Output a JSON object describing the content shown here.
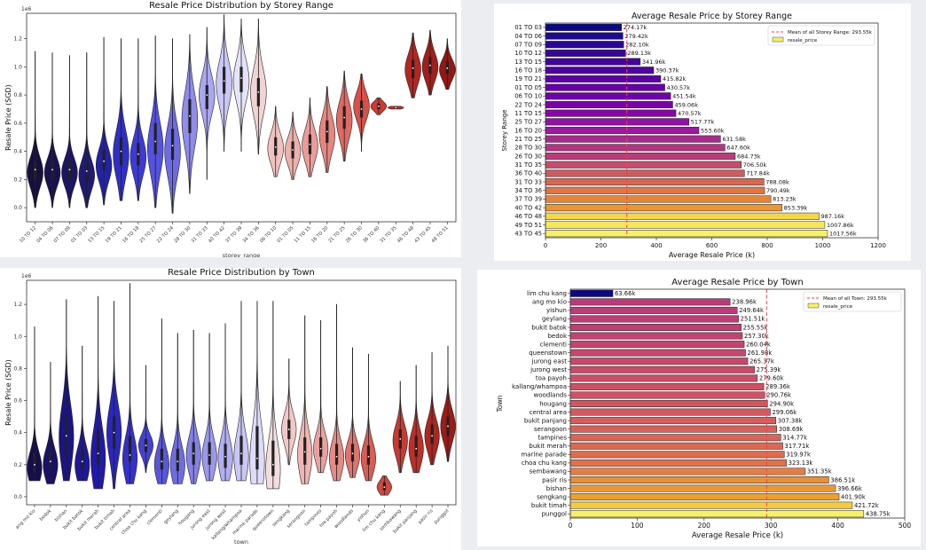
{
  "colors": {
    "ref_line": "#e8474f",
    "legend_patch": "#f4f06e",
    "box": "#222222"
  },
  "chart_data": [
    {
      "id": "violin_storey",
      "type": "violin",
      "title": "Resale Price Distribution by Storey Range",
      "xlabel": "storey_range",
      "ylabel": "Resale Price (SGD)",
      "y_scale_label": "1e6",
      "ylim": [
        -0.1,
        1.38
      ],
      "yticks": [
        0.0,
        0.2,
        0.4,
        0.6,
        0.8,
        1.0,
        1.2
      ],
      "ytick_labels": [
        "0.0",
        "0.2",
        "0.4",
        "0.6",
        "0.8",
        "1.0",
        "1.2"
      ],
      "categories": [
        "10 TO 12",
        "04 TO 06",
        "07 TO 09",
        "01 TO 03",
        "13 TO 15",
        "19 TO 21",
        "16 TO 18",
        "25 TO 27",
        "22 TO 24",
        "28 TO 30",
        "31 TO 33",
        "40 TO 42",
        "37 TO 39",
        "34 TO 36",
        "06 TO 10",
        "01 TO 05",
        "11 TO 15",
        "16 TO 20",
        "21 TO 25",
        "26 TO 30",
        "36 TO 40",
        "31 TO 35",
        "46 TO 48",
        "43 TO 45",
        "49 TO 51"
      ],
      "distributions": [
        {
          "min": 0.0,
          "q1": 0.2,
          "median": 0.27,
          "q3": 0.33,
          "max": 1.11,
          "mode": 0.25,
          "color": "#170f3f"
        },
        {
          "min": 0.0,
          "q1": 0.21,
          "median": 0.27,
          "q3": 0.33,
          "max": 1.1,
          "mode": 0.25,
          "color": "#1a1250"
        },
        {
          "min": 0.0,
          "q1": 0.21,
          "median": 0.27,
          "q3": 0.33,
          "max": 1.08,
          "mode": 0.25,
          "color": "#1c1560"
        },
        {
          "min": 0.0,
          "q1": 0.19,
          "median": 0.26,
          "q3": 0.32,
          "max": 1.1,
          "mode": 0.23,
          "color": "#1e1a75"
        },
        {
          "min": 0.02,
          "q1": 0.27,
          "median": 0.33,
          "q3": 0.41,
          "max": 1.21,
          "mode": 0.3,
          "color": "#2222a8"
        },
        {
          "min": 0.05,
          "q1": 0.3,
          "median": 0.4,
          "q3": 0.5,
          "max": 1.2,
          "mode": 0.38,
          "color": "#2f2fc8"
        },
        {
          "min": 0.05,
          "q1": 0.3,
          "median": 0.38,
          "q3": 0.46,
          "max": 1.2,
          "mode": 0.36,
          "color": "#3d3ad6"
        },
        {
          "min": 0.0,
          "q1": 0.38,
          "median": 0.47,
          "q3": 0.6,
          "max": 1.22,
          "mode": 0.42,
          "color": "#5552e0"
        },
        {
          "min": -0.04,
          "q1": 0.34,
          "median": 0.44,
          "q3": 0.56,
          "max": 1.2,
          "mode": 0.4,
          "color": "#6d6ae6"
        },
        {
          "min": 0.1,
          "q1": 0.53,
          "median": 0.65,
          "q3": 0.77,
          "max": 1.23,
          "mode": 0.62,
          "color": "#8f8cec"
        },
        {
          "min": 0.2,
          "q1": 0.7,
          "median": 0.8,
          "q3": 0.87,
          "max": 1.28,
          "mode": 0.8,
          "color": "#a9a7f1"
        },
        {
          "min": 0.4,
          "q1": 0.81,
          "median": 0.9,
          "q3": 1.0,
          "max": 1.37,
          "mode": 0.88,
          "color": "#c8c7f6"
        },
        {
          "min": 0.4,
          "q1": 0.82,
          "median": 0.92,
          "q3": 1.0,
          "max": 1.34,
          "mode": 0.9,
          "color": "#e4e3fa"
        },
        {
          "min": 0.38,
          "q1": 0.72,
          "median": 0.82,
          "q3": 0.92,
          "max": 1.34,
          "mode": 0.82,
          "color": "#f1d3d3"
        },
        {
          "min": 0.22,
          "q1": 0.37,
          "median": 0.43,
          "q3": 0.5,
          "max": 0.72,
          "mode": 0.42,
          "color": "#f1c2c0"
        },
        {
          "min": 0.2,
          "q1": 0.35,
          "median": 0.41,
          "q3": 0.47,
          "max": 0.68,
          "mode": 0.4,
          "color": "#eeb0ad"
        },
        {
          "min": 0.22,
          "q1": 0.38,
          "median": 0.45,
          "q3": 0.52,
          "max": 0.78,
          "mode": 0.44,
          "color": "#eb9c98"
        },
        {
          "min": 0.25,
          "q1": 0.46,
          "median": 0.54,
          "q3": 0.62,
          "max": 0.86,
          "mode": 0.52,
          "color": "#e8857f"
        },
        {
          "min": 0.33,
          "q1": 0.56,
          "median": 0.64,
          "q3": 0.72,
          "max": 0.97,
          "mode": 0.62,
          "color": "#e06a62"
        },
        {
          "min": 0.4,
          "q1": 0.64,
          "median": 0.7,
          "q3": 0.76,
          "max": 0.95,
          "mode": 0.72,
          "color": "#d85048"
        },
        {
          "min": 0.66,
          "q1": 0.7,
          "median": 0.72,
          "q3": 0.74,
          "max": 0.78,
          "mode": 0.72,
          "color": "#cf3a32"
        },
        {
          "min": 0.7,
          "q1": 0.705,
          "median": 0.71,
          "q3": 0.715,
          "max": 0.72,
          "mode": 0.71,
          "color": "#c42e26"
        },
        {
          "min": 0.78,
          "q1": 0.92,
          "median": 0.99,
          "q3": 1.05,
          "max": 1.24,
          "mode": 0.98,
          "color": "#b42620"
        },
        {
          "min": 0.8,
          "q1": 0.95,
          "median": 1.01,
          "q3": 1.07,
          "max": 1.26,
          "mode": 1.0,
          "color": "#a31e1a"
        },
        {
          "min": 0.84,
          "q1": 0.95,
          "median": 0.99,
          "q3": 1.04,
          "max": 1.2,
          "mode": 0.98,
          "color": "#921814"
        }
      ]
    },
    {
      "id": "bar_storey",
      "type": "bar",
      "orientation": "horizontal",
      "title": "Average Resale Price by Storey Range",
      "xlabel": "Average Resale Price (k)",
      "ylabel": "Storey Range",
      "xlim": [
        0,
        1200
      ],
      "xticks": [
        0,
        200,
        400,
        600,
        800,
        1000,
        1200
      ],
      "categories": [
        "01 TO 03",
        "04 TO 06",
        "07 TO 09",
        "10 TO 12",
        "13 TO 15",
        "16 TO 18",
        "19 TO 21",
        "01 TO 05",
        "06 TO 10",
        "22 TO 24",
        "11 TO 15",
        "25 TO 27",
        "16 TO 20",
        "21 TO 25",
        "28 TO 30",
        "26 TO 30",
        "31 TO 35",
        "36 TO 40",
        "31 TO 33",
        "34 TO 36",
        "37 TO 39",
        "40 TO 42",
        "46 TO 48",
        "49 TO 51",
        "43 TO 45"
      ],
      "values": [
        274.17,
        279.42,
        282.1,
        289.13,
        341.96,
        390.37,
        415.82,
        430.57,
        451.54,
        459.06,
        470.57,
        517.77,
        553.6,
        631.58,
        647.6,
        684.73,
        706.5,
        717.84,
        788.08,
        790.49,
        813.23,
        853.39,
        987.16,
        1007.86,
        1017.56
      ],
      "value_labels": [
        "274.17k",
        "279.42k",
        "282.10k",
        "289.13k",
        "341.96k",
        "390.37k",
        "415.82k",
        "430.57k",
        "451.54k",
        "459.06k",
        "470.57k",
        "517.77k",
        "553.60k",
        "631.58k",
        "647.60k",
        "684.73k",
        "706.50k",
        "717.84k",
        "788.08k",
        "790.49k",
        "813.23k",
        "853.39k",
        "987.16k",
        "1007.86k",
        "1017.56k"
      ],
      "colors": [
        "#0d0887",
        "#1d0a8e",
        "#2a0893",
        "#360797",
        "#42049a",
        "#4e029e",
        "#5a01a5",
        "#6500a7",
        "#7001a8",
        "#7b02a8",
        "#8606a6",
        "#9013a1",
        "#9a1b9b",
        "#a52c8a",
        "#b03582",
        "#ba3d7a",
        "#c44d6c",
        "#cc5b5f",
        "#d46952",
        "#dc7746",
        "#e3863b",
        "#ea9631",
        "#f3d64a",
        "#f6e65a",
        "#f7f06a"
      ],
      "reference_line": {
        "value": 293.55,
        "label": "Mean of all Storey Range: 293.55k"
      },
      "legend": {
        "entries": [
          "Mean of all Storey Range: 293.55k",
          "resale_price"
        ],
        "position": "upper right"
      }
    },
    {
      "id": "violin_town",
      "type": "violin",
      "title": "Resale Price Distribution by Town",
      "xlabel": "town",
      "ylabel": "Resale Price (SGD)",
      "y_scale_label": "1e6",
      "ylim": [
        -0.05,
        1.35
      ],
      "yticks": [
        0.0,
        0.2,
        0.4,
        0.6,
        0.8,
        1.0,
        1.2
      ],
      "ytick_labels": [
        "0.0",
        "0.2",
        "0.4",
        "0.6",
        "0.8",
        "1.0",
        "1.2"
      ],
      "categories": [
        "ang mo kio",
        "bedok",
        "bishan",
        "bukit batok",
        "bukit merah",
        "bukit timah",
        "central area",
        "choa chu kang",
        "clementi",
        "geylang",
        "hougang",
        "jurong east",
        "jurong west",
        "kallang/whampoa",
        "marine parade",
        "queenstown",
        "sengkang",
        "serangoon",
        "tampines",
        "toa payoh",
        "woodlands",
        "yishun",
        "lim chu kang",
        "sembawang",
        "bukit panjang",
        "pasir ris",
        "punggol"
      ],
      "distributions": [
        {
          "min": 0.1,
          "q1": 0.15,
          "median": 0.2,
          "q3": 0.27,
          "max": 1.06,
          "mode": 0.18,
          "color": "#150d50"
        },
        {
          "min": 0.08,
          "q1": 0.17,
          "median": 0.22,
          "q3": 0.29,
          "max": 0.84,
          "mode": 0.2,
          "color": "#18106a"
        },
        {
          "min": 0.1,
          "q1": 0.26,
          "median": 0.38,
          "q3": 0.5,
          "max": 1.23,
          "mode": 0.37,
          "color": "#1b1486"
        },
        {
          "min": 0.1,
          "q1": 0.17,
          "median": 0.22,
          "q3": 0.3,
          "max": 0.94,
          "mode": 0.2,
          "color": "#1e179a"
        },
        {
          "min": 0.05,
          "q1": 0.2,
          "median": 0.27,
          "q3": 0.42,
          "max": 1.25,
          "mode": 0.24,
          "color": "#2119ad"
        },
        {
          "min": 0.05,
          "q1": 0.3,
          "median": 0.4,
          "q3": 0.5,
          "max": 1.22,
          "mode": 0.4,
          "color": "#2a26bf"
        },
        {
          "min": 0.08,
          "q1": 0.22,
          "median": 0.26,
          "q3": 0.38,
          "max": 1.33,
          "mode": 0.24,
          "color": "#3430cc"
        },
        {
          "min": 0.15,
          "q1": 0.28,
          "median": 0.32,
          "q3": 0.36,
          "max": 0.82,
          "mode": 0.32,
          "color": "#4441d4"
        },
        {
          "min": 0.08,
          "q1": 0.17,
          "median": 0.22,
          "q3": 0.3,
          "max": 1.11,
          "mode": 0.2,
          "color": "#5956dc"
        },
        {
          "min": 0.08,
          "q1": 0.16,
          "median": 0.22,
          "q3": 0.3,
          "max": 1.02,
          "mode": 0.2,
          "color": "#6f6ce3"
        },
        {
          "min": 0.08,
          "q1": 0.2,
          "median": 0.27,
          "q3": 0.34,
          "max": 1.04,
          "mode": 0.26,
          "color": "#8481e8"
        },
        {
          "min": 0.1,
          "q1": 0.2,
          "median": 0.26,
          "q3": 0.34,
          "max": 1.02,
          "mode": 0.25,
          "color": "#9a98ec"
        },
        {
          "min": 0.1,
          "q1": 0.18,
          "median": 0.25,
          "q3": 0.33,
          "max": 1.08,
          "mode": 0.24,
          "color": "#b1aff1"
        },
        {
          "min": 0.1,
          "q1": 0.2,
          "median": 0.27,
          "q3": 0.38,
          "max": 1.22,
          "mode": 0.25,
          "color": "#c8c7f6"
        },
        {
          "min": 0.08,
          "q1": 0.17,
          "median": 0.24,
          "q3": 0.44,
          "max": 1.22,
          "mode": 0.22,
          "color": "#dedcfa"
        },
        {
          "min": 0.05,
          "q1": 0.13,
          "median": 0.2,
          "q3": 0.35,
          "max": 1.22,
          "mode": 0.17,
          "color": "#f2dede"
        },
        {
          "min": 0.2,
          "q1": 0.36,
          "median": 0.42,
          "q3": 0.48,
          "max": 0.86,
          "mode": 0.42,
          "color": "#f2c8c6"
        },
        {
          "min": 0.08,
          "q1": 0.2,
          "median": 0.28,
          "q3": 0.37,
          "max": 1.13,
          "mode": 0.26,
          "color": "#eeb5b2"
        },
        {
          "min": 0.15,
          "q1": 0.25,
          "median": 0.3,
          "q3": 0.37,
          "max": 1.1,
          "mode": 0.3,
          "color": "#eaa19d"
        },
        {
          "min": 0.1,
          "q1": 0.2,
          "median": 0.25,
          "q3": 0.33,
          "max": 1.2,
          "mode": 0.24,
          "color": "#e58b86"
        },
        {
          "min": 0.12,
          "q1": 0.22,
          "median": 0.27,
          "q3": 0.33,
          "max": 0.93,
          "mode": 0.26,
          "color": "#df736d"
        },
        {
          "min": 0.1,
          "q1": 0.2,
          "median": 0.25,
          "q3": 0.32,
          "max": 0.89,
          "mode": 0.24,
          "color": "#d95c55"
        },
        {
          "min": 0.01,
          "q1": 0.04,
          "median": 0.06,
          "q3": 0.09,
          "max": 0.13,
          "mode": 0.06,
          "color": "#d04840"
        },
        {
          "min": 0.15,
          "q1": 0.3,
          "median": 0.36,
          "q3": 0.42,
          "max": 0.72,
          "mode": 0.35,
          "color": "#c83a32"
        },
        {
          "min": 0.15,
          "q1": 0.25,
          "median": 0.3,
          "q3": 0.38,
          "max": 0.82,
          "mode": 0.3,
          "color": "#bd2f28"
        },
        {
          "min": 0.2,
          "q1": 0.33,
          "median": 0.38,
          "q3": 0.45,
          "max": 0.9,
          "mode": 0.38,
          "color": "#ae2620"
        },
        {
          "min": 0.22,
          "q1": 0.38,
          "median": 0.44,
          "q3": 0.5,
          "max": 0.94,
          "mode": 0.44,
          "color": "#9c1c18"
        }
      ]
    },
    {
      "id": "bar_town",
      "type": "bar",
      "orientation": "horizontal",
      "title": "Average Resale Price by Town",
      "xlabel": "Average Resale Price (k)",
      "ylabel": "Town",
      "xlim": [
        0,
        500
      ],
      "xticks": [
        0,
        100,
        200,
        300,
        400,
        500
      ],
      "categories": [
        "lim chu kang",
        "ang mo kio",
        "yishun",
        "geylang",
        "bukit batok",
        "bedok",
        "clementi",
        "queenstown",
        "jurong east",
        "jurong west",
        "toa payoh",
        "kallang/whampoa",
        "woodlands",
        "hougang",
        "central area",
        "bukit panjang",
        "serangoon",
        "tampines",
        "bukit merah",
        "marine parade",
        "choa chu kang",
        "sembawang",
        "pasir ris",
        "bishan",
        "sengkang",
        "bukit timah",
        "punggol"
      ],
      "values": [
        63.66,
        238.96,
        249.64,
        251.51,
        255.55,
        257.3,
        260.04,
        261.98,
        265.37,
        275.39,
        279.6,
        289.36,
        290.76,
        294.9,
        299.06,
        307.38,
        308.69,
        314.77,
        317.71,
        319.97,
        323.13,
        351.35,
        386.51,
        396.66,
        401.9,
        421.72,
        438.75
      ],
      "value_labels": [
        "63.66k",
        "238.96k",
        "249.64k",
        "251.51k",
        "255.55k",
        "257.30k",
        "260.04k",
        "261.98k",
        "265.37k",
        "275.39k",
        "279.60k",
        "289.36k",
        "290.76k",
        "294.90k",
        "299.06k",
        "307.38k",
        "308.69k",
        "314.77k",
        "317.71k",
        "319.97k",
        "323.13k",
        "351.35k",
        "386.51k",
        "396.66k",
        "401.90k",
        "421.72k",
        "438.75k"
      ],
      "colors": [
        "#0d0887",
        "#b83b7a",
        "#ba3d78",
        "#bc3f76",
        "#be4174",
        "#c04372",
        "#c24570",
        "#c4476e",
        "#c6496c",
        "#c84c6a",
        "#ca4e68",
        "#cc5166",
        "#ce5464",
        "#d05762",
        "#d25a60",
        "#d45e5d",
        "#d6615a",
        "#d86557",
        "#da6954",
        "#dc6d51",
        "#de724e",
        "#e27e47",
        "#e6903c",
        "#e99836",
        "#eba031",
        "#f2cb45",
        "#f7f06a"
      ],
      "reference_line": {
        "value": 293.55,
        "label": "Mean of all Town: 293.55k"
      },
      "legend": {
        "entries": [
          "Mean of all Town: 293.55k",
          "resale_price"
        ],
        "position": "upper right"
      }
    }
  ]
}
